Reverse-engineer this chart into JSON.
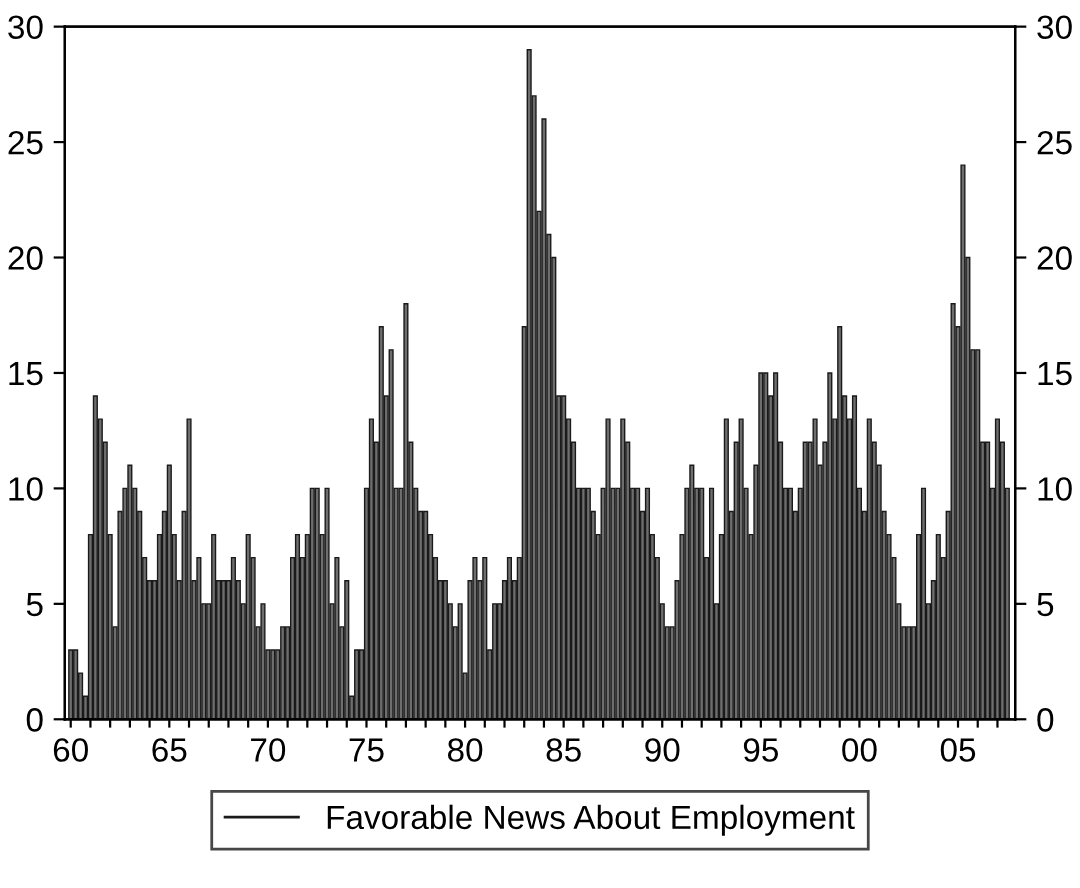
{
  "chart_data": {
    "type": "bar",
    "x": [
      1960,
      1960.25,
      1960.5,
      1960.75,
      1961,
      1961.25,
      1961.5,
      1961.75,
      1962,
      1962.25,
      1962.5,
      1962.75,
      1963,
      1963.25,
      1963.5,
      1963.75,
      1964,
      1964.25,
      1964.5,
      1964.75,
      1965,
      1965.25,
      1965.5,
      1965.75,
      1966,
      1966.25,
      1966.5,
      1966.75,
      1967,
      1967.25,
      1967.5,
      1967.75,
      1968,
      1968.25,
      1968.5,
      1968.75,
      1969,
      1969.25,
      1969.5,
      1969.75,
      1970,
      1970.25,
      1970.5,
      1970.75,
      1971,
      1971.25,
      1971.5,
      1971.75,
      1972,
      1972.25,
      1972.5,
      1972.75,
      1973,
      1973.25,
      1973.5,
      1973.75,
      1974,
      1974.25,
      1974.5,
      1974.75,
      1975,
      1975.25,
      1975.5,
      1975.75,
      1976,
      1976.25,
      1976.5,
      1976.75,
      1977,
      1977.25,
      1977.5,
      1977.75,
      1978,
      1978.25,
      1978.5,
      1978.75,
      1979,
      1979.25,
      1979.5,
      1979.75,
      1980,
      1980.25,
      1980.5,
      1980.75,
      1981,
      1981.25,
      1981.5,
      1981.75,
      1982,
      1982.25,
      1982.5,
      1982.75,
      1983,
      1983.25,
      1983.5,
      1983.75,
      1984,
      1984.25,
      1984.5,
      1984.75,
      1985,
      1985.25,
      1985.5,
      1985.75,
      1986,
      1986.25,
      1986.5,
      1986.75,
      1987,
      1987.25,
      1987.5,
      1987.75,
      1988,
      1988.25,
      1988.5,
      1988.75,
      1989,
      1989.25,
      1989.5,
      1989.75,
      1990,
      1990.25,
      1990.5,
      1990.75,
      1991,
      1991.25,
      1991.5,
      1991.75,
      1992,
      1992.25,
      1992.5,
      1992.75,
      1993,
      1993.25,
      1993.5,
      1993.75,
      1994,
      1994.25,
      1994.5,
      1994.75,
      1995,
      1995.25,
      1995.5,
      1995.75,
      1996,
      1996.25,
      1996.5,
      1996.75,
      1997,
      1997.25,
      1997.5,
      1997.75,
      1998,
      1998.25,
      1998.5,
      1998.75,
      1999,
      1999.25,
      1999.5,
      1999.75,
      2000,
      2000.25,
      2000.5,
      2000.75,
      2001,
      2001.25,
      2001.5,
      2001.75,
      2002,
      2002.25,
      2002.5,
      2002.75,
      2003,
      2003.25,
      2003.5,
      2003.75,
      2004,
      2004.25,
      2004.5,
      2004.75,
      2005,
      2005.25,
      2005.5,
      2005.75,
      2006,
      2006.25,
      2006.5,
      2006.75,
      2007,
      2007.25,
      2007.5
    ],
    "series": [
      {
        "name": "Favorable News About Employment",
        "color": "#6e6e6e",
        "values": [
          3,
          3,
          2,
          1,
          8,
          14,
          13,
          12,
          8,
          4,
          9,
          10,
          11,
          10,
          9,
          7,
          6,
          6,
          8,
          9,
          11,
          8,
          6,
          9,
          13,
          6,
          7,
          5,
          5,
          8,
          6,
          6,
          6,
          7,
          6,
          5,
          8,
          7,
          4,
          5,
          3,
          3,
          3,
          4,
          4,
          7,
          8,
          7,
          8,
          10,
          10,
          8,
          10,
          5,
          7,
          4,
          6,
          1,
          3,
          3,
          10,
          13,
          12,
          17,
          14,
          16,
          10,
          10,
          18,
          12,
          10,
          9,
          9,
          8,
          7,
          6,
          6,
          5,
          4,
          5,
          2,
          6,
          7,
          6,
          7,
          3,
          5,
          5,
          6,
          7,
          6,
          7,
          17,
          29,
          27,
          22,
          26,
          21,
          20,
          14,
          14,
          13,
          12,
          10,
          10,
          10,
          9,
          8,
          10,
          13,
          10,
          10,
          13,
          12,
          10,
          10,
          9,
          10,
          8,
          7,
          5,
          4,
          4,
          6,
          8,
          10,
          11,
          10,
          10,
          7,
          10,
          5,
          8,
          13,
          9,
          12,
          13,
          10,
          8,
          11,
          15,
          15,
          14,
          15,
          12,
          10,
          10,
          9,
          10,
          12,
          12,
          13,
          11,
          12,
          15,
          13,
          17,
          14,
          13,
          14,
          10,
          9,
          13,
          12,
          11,
          9,
          8,
          7,
          5,
          4,
          4,
          4,
          8,
          10,
          5,
          6,
          8,
          7,
          9,
          18,
          17,
          24,
          20,
          16,
          16,
          12,
          12,
          10,
          13,
          12,
          10
        ]
      }
    ],
    "xlim": [
      1959.7,
      2007.9
    ],
    "xticks": [
      {
        "value": 1960,
        "label": "60"
      },
      {
        "value": 1961,
        "label": null
      },
      {
        "value": 1962,
        "label": null
      },
      {
        "value": 1963,
        "label": null
      },
      {
        "value": 1964,
        "label": null
      },
      {
        "value": 1965,
        "label": "65"
      },
      {
        "value": 1966,
        "label": null
      },
      {
        "value": 1967,
        "label": null
      },
      {
        "value": 1968,
        "label": null
      },
      {
        "value": 1969,
        "label": null
      },
      {
        "value": 1970,
        "label": "70"
      },
      {
        "value": 1971,
        "label": null
      },
      {
        "value": 1972,
        "label": null
      },
      {
        "value": 1973,
        "label": null
      },
      {
        "value": 1974,
        "label": null
      },
      {
        "value": 1975,
        "label": "75"
      },
      {
        "value": 1976,
        "label": null
      },
      {
        "value": 1977,
        "label": null
      },
      {
        "value": 1978,
        "label": null
      },
      {
        "value": 1979,
        "label": null
      },
      {
        "value": 1980,
        "label": "80"
      },
      {
        "value": 1981,
        "label": null
      },
      {
        "value": 1982,
        "label": null
      },
      {
        "value": 1983,
        "label": null
      },
      {
        "value": 1984,
        "label": null
      },
      {
        "value": 1985,
        "label": "85"
      },
      {
        "value": 1986,
        "label": null
      },
      {
        "value": 1987,
        "label": null
      },
      {
        "value": 1988,
        "label": null
      },
      {
        "value": 1989,
        "label": null
      },
      {
        "value": 1990,
        "label": "90"
      },
      {
        "value": 1991,
        "label": null
      },
      {
        "value": 1992,
        "label": null
      },
      {
        "value": 1993,
        "label": null
      },
      {
        "value": 1994,
        "label": null
      },
      {
        "value": 1995,
        "label": "95"
      },
      {
        "value": 1996,
        "label": null
      },
      {
        "value": 1997,
        "label": null
      },
      {
        "value": 1998,
        "label": null
      },
      {
        "value": 1999,
        "label": null
      },
      {
        "value": 2000,
        "label": "00"
      },
      {
        "value": 2001,
        "label": null
      },
      {
        "value": 2002,
        "label": null
      },
      {
        "value": 2003,
        "label": null
      },
      {
        "value": 2004,
        "label": null
      },
      {
        "value": 2005,
        "label": "05"
      },
      {
        "value": 2006,
        "label": null
      },
      {
        "value": 2007,
        "label": null
      }
    ],
    "ylim": [
      0,
      30
    ],
    "yticks": [
      0,
      5,
      10,
      15,
      20,
      25,
      30
    ],
    "y2lim": [
      0,
      30
    ],
    "y2ticks": [
      0,
      5,
      10,
      15,
      20,
      25,
      30
    ],
    "legend": "bottom"
  }
}
